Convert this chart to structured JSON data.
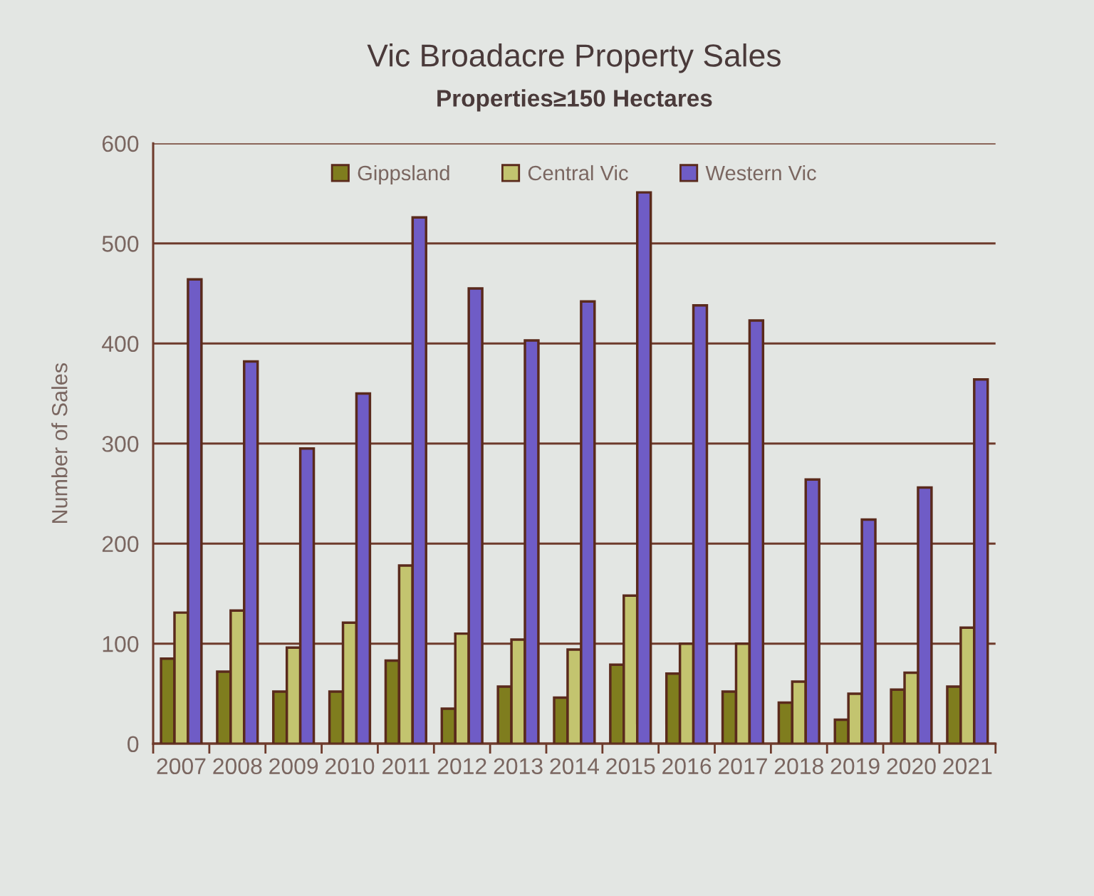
{
  "chart_data": {
    "type": "bar",
    "title": "Vic Broadacre Property Sales",
    "subtitle": "Properties≥150 Hectares",
    "ylabel": "Number of Sales",
    "categories": [
      "2007",
      "2008",
      "2009",
      "2010",
      "2011",
      "2012",
      "2013",
      "2014",
      "2015",
      "2016",
      "2017",
      "2018",
      "2019",
      "2020",
      "2021"
    ],
    "series": [
      {
        "name": "Gippsland",
        "color": "#7f7d1e",
        "values": [
          85,
          72,
          52,
          52,
          83,
          35,
          57,
          46,
          79,
          70,
          52,
          41,
          24,
          54,
          57
        ]
      },
      {
        "name": "Central Vic",
        "color": "#c3c46f",
        "values": [
          131,
          133,
          96,
          121,
          178,
          110,
          104,
          94,
          148,
          100,
          100,
          62,
          50,
          71,
          116
        ]
      },
      {
        "name": "Western Vic",
        "color": "#6f5cc6",
        "values": [
          464,
          382,
          295,
          350,
          526,
          455,
          403,
          442,
          551,
          438,
          423,
          264,
          224,
          256,
          364
        ]
      }
    ],
    "ylim": [
      0,
      600
    ],
    "yticks": [
      0,
      100,
      200,
      300,
      400,
      500,
      600
    ],
    "grid": "y",
    "legend": "top"
  }
}
